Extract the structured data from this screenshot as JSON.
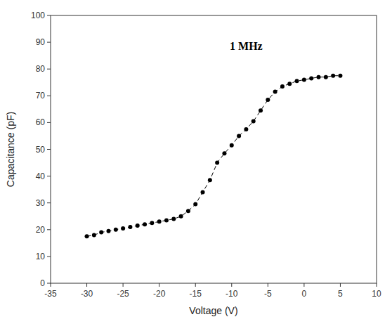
{
  "chart_data": {
    "type": "line",
    "x": [
      -30,
      -29,
      -28,
      -27,
      -26,
      -25,
      -24,
      -23,
      -22,
      -21,
      -20,
      -19,
      -18,
      -17,
      -16,
      -15,
      -14,
      -13,
      -12,
      -11,
      -10,
      -9,
      -8,
      -7,
      -6,
      -5,
      -4,
      -3,
      -2,
      -1,
      0,
      1,
      2,
      3,
      4,
      5
    ],
    "values": [
      17.5,
      18.0,
      19.0,
      19.5,
      20.0,
      20.5,
      21.0,
      21.5,
      22.0,
      22.5,
      23.0,
      23.5,
      24.0,
      25.0,
      27.0,
      29.5,
      34.0,
      38.5,
      45.0,
      48.5,
      51.5,
      55.0,
      57.5,
      60.5,
      64.5,
      68.5,
      71.5,
      73.5,
      74.5,
      75.5,
      76.0,
      76.5,
      77.0,
      77.0,
      77.5,
      77.5
    ],
    "xlabel": "Voltage (V)",
    "ylabel": "Capacitance (pF)",
    "annotations": [
      {
        "text": "1 MHz",
        "x": -8,
        "y": 88
      }
    ],
    "xlim": [
      -35,
      10
    ],
    "ylim": [
      0,
      100
    ],
    "xticks": [
      -35,
      -30,
      -25,
      -20,
      -15,
      -10,
      -5,
      0,
      5,
      10
    ],
    "yticks": [
      0,
      10,
      20,
      30,
      40,
      50,
      60,
      70,
      80,
      90,
      100
    ],
    "color": "#000000",
    "marker": "circle",
    "line_style": "dashed",
    "grid": false
  }
}
